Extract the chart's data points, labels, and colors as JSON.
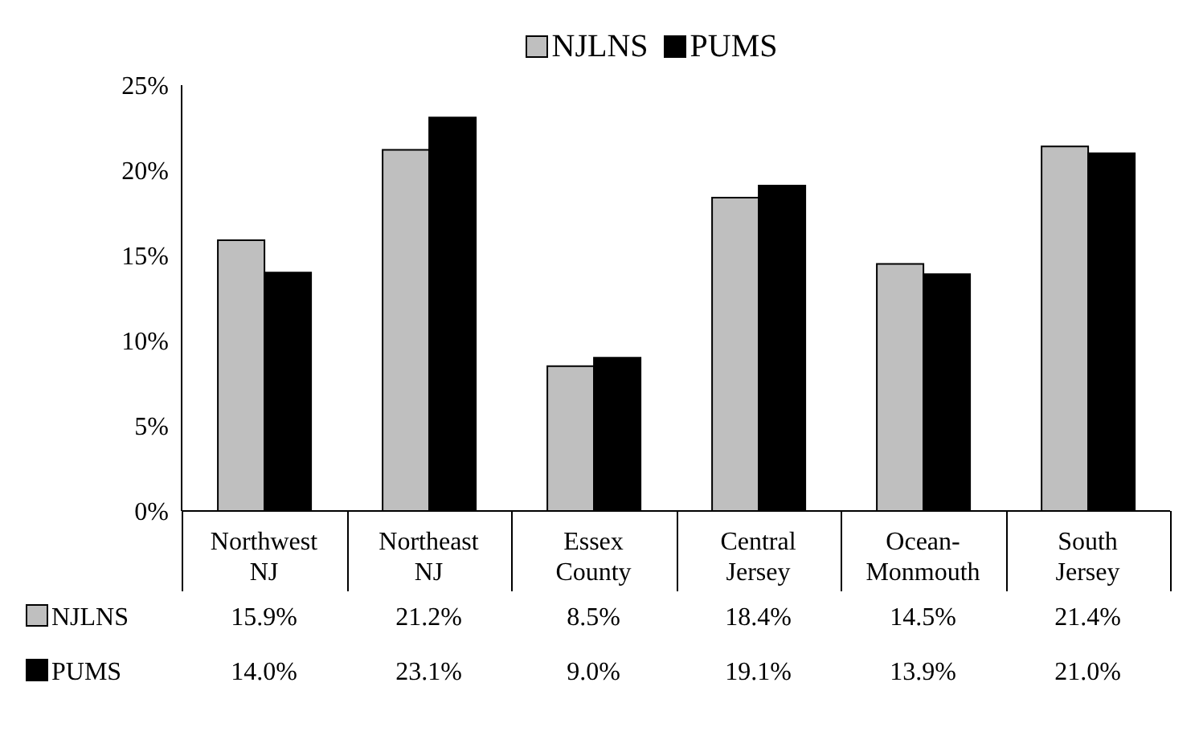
{
  "chart_data": {
    "type": "bar",
    "categories": [
      "Northwest NJ",
      "Northeast NJ",
      "Essex County",
      "Central Jersey",
      "Ocean-Monmouth",
      "South Jersey"
    ],
    "series": [
      {
        "name": "NJLNS",
        "color": "#bfbfbf",
        "values": [
          15.9,
          21.2,
          8.5,
          18.4,
          14.5,
          21.4
        ],
        "value_labels": [
          "15.9%",
          "21.2%",
          "8.5%",
          "18.4%",
          "14.5%",
          "21.4%"
        ]
      },
      {
        "name": "PUMS",
        "color": "#000000",
        "values": [
          14.0,
          23.1,
          9.0,
          19.1,
          13.9,
          21.0
        ],
        "value_labels": [
          "14.0%",
          "23.1%",
          "9.0%",
          "19.1%",
          "13.9%",
          "21.0%"
        ]
      }
    ],
    "ylim": [
      0,
      25
    ],
    "yticks": [
      {
        "value": 0,
        "label": "0%"
      },
      {
        "value": 5,
        "label": "5%"
      },
      {
        "value": 10,
        "label": "10%"
      },
      {
        "value": 15,
        "label": "15%"
      },
      {
        "value": 20,
        "label": "20%"
      },
      {
        "value": 25,
        "label": "25%"
      }
    ],
    "grid": false,
    "legend": "top"
  }
}
